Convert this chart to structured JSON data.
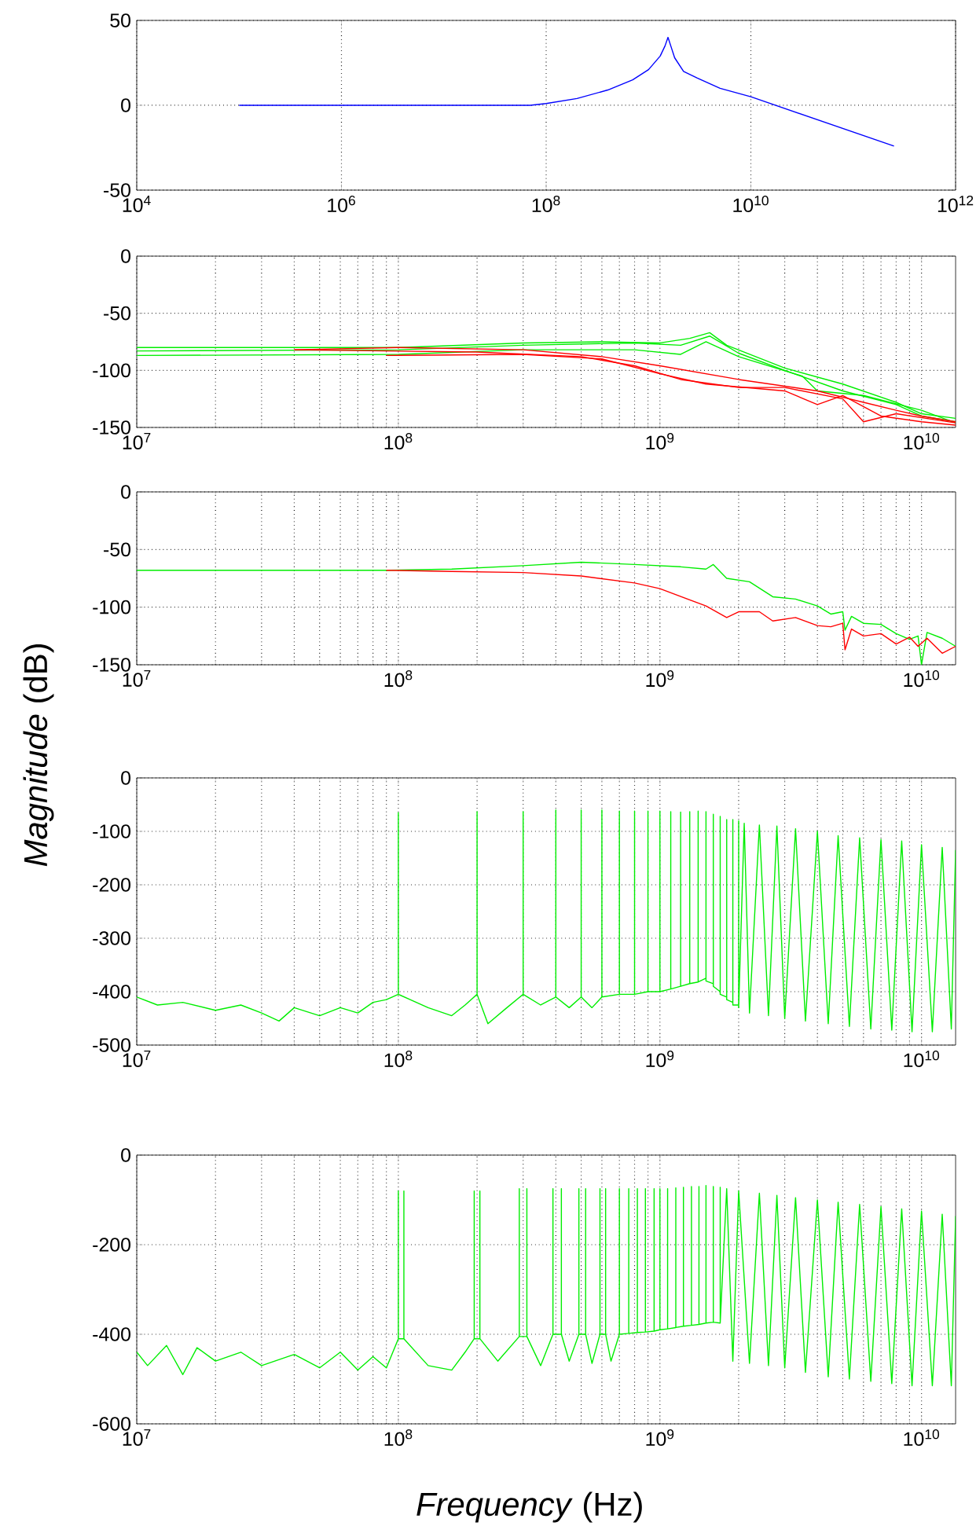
{
  "chart_data": [
    {
      "type": "line",
      "log": "x",
      "grid": true,
      "xlim": [
        10000,
        1000000000000
      ],
      "ylim": [
        -50,
        50
      ],
      "xticks": [
        {
          "value": 10000,
          "label": "10$^{4}$"
        },
        {
          "value": 1000000,
          "label": "10$^{6}$"
        },
        {
          "value": 100000000,
          "label": "10$^{8}$"
        },
        {
          "value": 10000000000,
          "label": "10$^{10}$"
        },
        {
          "value": 1000000000000,
          "label": "10$^{12}$"
        }
      ],
      "yticks": [
        -50,
        0,
        50
      ],
      "series": [
        {
          "color": "#0000ff",
          "x": [
            100000.0,
            70000000.0,
            100000000.0,
            200000000.0,
            400000000.0,
            700000000.0,
            1000000000.0,
            1300000000.0,
            1450000000.0,
            1550000000.0,
            1650000000.0,
            1800000000.0,
            2200000000.0,
            3000000000.0,
            5000000000.0,
            10000000000.0,
            250000000000.0
          ],
          "values": [
            0,
            0,
            1,
            4,
            9,
            15,
            21,
            29,
            35,
            40,
            35,
            28,
            20,
            16,
            10,
            5,
            -24
          ]
        }
      ]
    },
    {
      "type": "line",
      "log": "x",
      "grid": true,
      "xlim": [
        10000000,
        13500000000
      ],
      "ylim": [
        -150,
        0
      ],
      "xticks": [
        {
          "value": 10000000,
          "label": "10$^{7}$"
        },
        {
          "value": 100000000,
          "label": "10$^{8}$"
        },
        {
          "value": 1000000000,
          "label": "10$^{9}$"
        },
        {
          "value": 10000000000,
          "label": "10$^{10}$"
        }
      ],
      "yticks": [
        -150,
        -100,
        -50,
        0
      ],
      "series": [
        {
          "color": "#00ee00",
          "x": [
            10000000.0,
            100000000.0,
            300000000.0,
            600000000.0,
            1000000000.0,
            1300000000.0,
            1550000000.0,
            1800000000.0,
            3000000000.0,
            5000000000.0,
            8000000000.0,
            10000000000.0,
            13500000000.0
          ],
          "values": [
            -80,
            -80,
            -76,
            -75,
            -76,
            -72,
            -67,
            -78,
            -98,
            -112,
            -128,
            -138,
            -142
          ]
        },
        {
          "color": "#00ee00",
          "x": [
            10000000.0,
            100000000.0,
            300000000.0,
            800000000.0,
            1200000000.0,
            1550000000.0,
            2000000000.0,
            3000000000.0,
            5000000000.0,
            8000000000.0,
            10000000000.0,
            13500000000.0
          ],
          "values": [
            -83,
            -82,
            -78,
            -76,
            -78,
            -70,
            -85,
            -100,
            -118,
            -130,
            -140,
            -145
          ]
        },
        {
          "color": "#00ee00",
          "x": [
            10000000.0,
            100000000.0,
            300000000.0,
            800000000.0,
            1200000000.0,
            1500000000.0,
            2000000000.0,
            3500000000.0,
            4000000000.0,
            6000000000.0,
            10000000000.0,
            13500000000.0
          ],
          "values": [
            -87,
            -86,
            -82,
            -82,
            -86,
            -75,
            -88,
            -105,
            -118,
            -122,
            -135,
            -146
          ]
        },
        {
          "color": "#ff0000",
          "x": [
            40000000.0,
            100000000.0,
            300000000.0,
            600000000.0,
            1000000000.0,
            2000000000.0,
            4000000000.0,
            6000000000.0,
            8000000000.0,
            10000000000.0,
            13500000000.0
          ],
          "values": [
            -82,
            -80,
            -82,
            -88,
            -96,
            -108,
            -118,
            -128,
            -135,
            -140,
            -145
          ]
        },
        {
          "color": "#ff0000",
          "x": [
            90000000.0,
            300000000.0,
            600000000.0,
            1000000000.0,
            1500000000.0,
            3000000000.0,
            4000000000.0,
            5000000000.0,
            7000000000.0,
            10000000000.0,
            13500000000.0
          ],
          "values": [
            -87,
            -86,
            -90,
            -103,
            -112,
            -118,
            -130,
            -122,
            -140,
            -145,
            -148
          ]
        },
        {
          "color": "#ff0000",
          "x": [
            40000000.0,
            200000000.0,
            500000000.0,
            800000000.0,
            1200000000.0,
            2000000000.0,
            3000000000.0,
            5000000000.0,
            6000000000.0,
            8000000000.0,
            13500000000.0
          ],
          "values": [
            -82,
            -84,
            -88,
            -96,
            -108,
            -115,
            -115,
            -125,
            -145,
            -138,
            -146
          ]
        }
      ]
    },
    {
      "type": "line",
      "log": "x",
      "grid": true,
      "xlim": [
        10000000,
        13500000000
      ],
      "ylim": [
        -150,
        0
      ],
      "xticks": [
        {
          "value": 10000000,
          "label": "10$^{7}$"
        },
        {
          "value": 100000000,
          "label": "10$^{8}$"
        },
        {
          "value": 1000000000,
          "label": "10$^{9}$"
        },
        {
          "value": 10000000000,
          "label": "10$^{10}$"
        }
      ],
      "yticks": [
        -150,
        -100,
        -50,
        0
      ],
      "ylabel": "*Magnitude* (dB)",
      "series": [
        {
          "color": "#00ee00",
          "x": [
            10000000.0,
            90000000.0,
            160000000.0,
            300000000.0,
            500000000.0,
            800000000.0,
            1200000000.0,
            1500000000.0,
            1600000000.0,
            1800000000.0,
            2200000000.0,
            2700000000.0,
            3300000000.0,
            4000000000.0,
            4500000000.0,
            5000000000.0,
            5100000000.0,
            5400000000.0,
            6000000000.0,
            7000000000.0,
            8000000000.0,
            9000000000.0,
            9700000000.0,
            10000000000.0,
            10500000000.0,
            12000000000.0,
            13500000000.0
          ],
          "values": [
            -68,
            -68,
            -67,
            -64,
            -61,
            -63,
            -65,
            -67,
            -63,
            -75,
            -78,
            -91,
            -93,
            -99,
            -106,
            -104,
            -120,
            -108,
            -114,
            -115,
            -123,
            -128,
            -125,
            -150,
            -122,
            -127,
            -134
          ]
        },
        {
          "color": "#ff0000",
          "x": [
            90000000.0,
            160000000.0,
            300000000.0,
            500000000.0,
            800000000.0,
            1000000000.0,
            1500000000.0,
            1800000000.0,
            2000000000.0,
            2400000000.0,
            2700000000.0,
            3300000000.0,
            4000000000.0,
            4500000000.0,
            5000000000.0,
            5100000000.0,
            5400000000.0,
            6000000000.0,
            7000000000.0,
            8000000000.0,
            9000000000.0,
            9700000000.0,
            10500000000.0,
            12000000000.0,
            13500000000.0
          ],
          "values": [
            -68,
            -69,
            -70,
            -73,
            -79,
            -84,
            -99,
            -109,
            -104,
            -104,
            -112,
            -109,
            -116,
            -117,
            -114,
            -137,
            -119,
            -125,
            -123,
            -132,
            -126,
            -134,
            -127,
            -140,
            -134
          ]
        }
      ]
    },
    {
      "type": "line",
      "log": "x",
      "grid": true,
      "xlim": [
        10000000,
        13500000000
      ],
      "ylim": [
        -500,
        0
      ],
      "xticks": [
        {
          "value": 10000000,
          "label": "10$^{7}$"
        },
        {
          "value": 100000000,
          "label": "10$^{8}$"
        },
        {
          "value": 1000000000,
          "label": "10$^{9}$"
        },
        {
          "value": 10000000000,
          "label": "10$^{10}$"
        }
      ],
      "yticks": [
        -500,
        -400,
        -300,
        -200,
        -100,
        0
      ],
      "series": [
        {
          "color": "#00ee00",
          "x": [
            10000000.0,
            12000000.0,
            15000000.0,
            20000000.0,
            25000000.0,
            30000000.0,
            35000000.0,
            40000000.0,
            50000000.0,
            60000000.0,
            70000000.0,
            80000000.0,
            90000000.0,
            100000000.0,
            100000000.0,
            100000000.0,
            130000000.0,
            160000000.0,
            180000000.0,
            200000000.0,
            200000000.0,
            200000000.0,
            220000000.0,
            260000000.0,
            300000000.0,
            300000000.0,
            300000000.0,
            350000000.0,
            400000000.0,
            400000000.0,
            400000000.0,
            450000000.0,
            500000000.0,
            500000000.0,
            500000000.0,
            550000000.0,
            600000000.0,
            600000000.0,
            600000000.0,
            700000000.0,
            700000000.0,
            700000000.0,
            800000000.0,
            800000000.0,
            800000000.0,
            900000000.0,
            900000000.0,
            900000000.0,
            1000000000.0,
            1000000000.0,
            1000000000.0,
            1100000000.0,
            1100000000.0,
            1100000000.0,
            1200000000.0,
            1200000000.0,
            1200000000.0,
            1300000000.0,
            1300000000.0,
            1300000000.0,
            1400000000.0,
            1400000000.0,
            1400000000.0,
            1500000000.0,
            1500000000.0,
            1500000000.0,
            1600000000.0,
            1600000000.0,
            1600000000.0,
            1700000000.0,
            1700000000.0,
            1700000000.0,
            1800000000.0,
            1800000000.0,
            1800000000.0,
            1900000000.0,
            1900000000.0,
            1900000000.0,
            2000000000.0,
            2000000000.0,
            2000000000.0,
            2100000000.0,
            2200000000.0,
            2400000000.0,
            2600000000.0,
            2800000000.0,
            3000000000.0,
            3300000000.0,
            3600000000.0,
            4000000000.0,
            4400000000.0,
            4800000000.0,
            5300000000.0,
            5800000000.0,
            6400000000.0,
            7000000000.0,
            7700000000.0,
            8400000000.0,
            9200000000.0,
            10000000000.0,
            11000000000.0,
            12000000000.0,
            13000000000.0,
            13500000000.0
          ],
          "values": [
            -410,
            -425,
            -420,
            -435,
            -425,
            -440,
            -455,
            -430,
            -445,
            -430,
            -440,
            -420,
            -415,
            -405,
            -65,
            -405,
            -430,
            -445,
            -425,
            -405,
            -63,
            -405,
            -460,
            -430,
            -405,
            -63,
            -405,
            -425,
            -410,
            -60,
            -410,
            -430,
            -410,
            -60,
            -410,
            -430,
            -410,
            -60,
            -410,
            -405,
            -62,
            -405,
            -405,
            -62,
            -405,
            -400,
            -62,
            -400,
            -400,
            -62,
            -400,
            -395,
            -63,
            -395,
            -390,
            -64,
            -390,
            -385,
            -63,
            -385,
            -382,
            -62,
            -382,
            -375,
            -63,
            -380,
            -385,
            -68,
            -390,
            -400,
            -72,
            -405,
            -410,
            -78,
            -415,
            -420,
            -78,
            -425,
            -425,
            -80,
            -430,
            -85,
            -440,
            -88,
            -445,
            -90,
            -450,
            -95,
            -455,
            -100,
            -460,
            -108,
            -465,
            -112,
            -470,
            -115,
            -472,
            -118,
            -475,
            -125,
            -475,
            -130,
            -470,
            -135
          ]
        }
      ]
    },
    {
      "type": "line",
      "log": "x",
      "grid": true,
      "xlim": [
        10000000,
        13500000000
      ],
      "ylim": [
        -600,
        0
      ],
      "xticks": [
        {
          "value": 10000000,
          "label": "10$^{7}$"
        },
        {
          "value": 100000000,
          "label": "10$^{8}$"
        },
        {
          "value": 1000000000,
          "label": "10$^{9}$"
        },
        {
          "value": 10000000000,
          "label": "10$^{10}$"
        }
      ],
      "yticks": [
        -600,
        -400,
        -200,
        0
      ],
      "xlabel": "*Frequency* (Hz)",
      "series": [
        {
          "color": "#00ee00",
          "x": [
            10000000.0,
            11000000.0,
            13000000.0,
            15000000.0,
            17000000.0,
            20000000.0,
            25000000.0,
            30000000.0,
            40000000.0,
            50000000.0,
            60000000.0,
            70000000.0,
            80000000.0,
            90000000.0,
            100000000.0,
            100000000.0,
            100000000.0,
            105000000.0,
            105000000.0,
            105000000.0,
            130000000.0,
            160000000.0,
            180000000.0,
            195000000.0,
            195000000.0,
            195000000.0,
            205000000.0,
            205000000.0,
            205000000.0,
            240000000.0,
            290000000.0,
            290000000.0,
            290000000.0,
            310000000.0,
            310000000.0,
            310000000.0,
            350000000.0,
            390000000.0,
            390000000.0,
            390000000.0,
            420000000.0,
            420000000.0,
            420000000.0,
            450000000.0,
            490000000.0,
            490000000.0,
            490000000.0,
            520000000.0,
            520000000.0,
            520000000.0,
            550000000.0,
            590000000.0,
            590000000.0,
            590000000.0,
            620000000.0,
            620000000.0,
            620000000.0,
            650000000.0,
            700000000.0,
            700000000.0,
            700000000.0,
            760000000.0,
            760000000.0,
            760000000.0,
            820000000.0,
            820000000.0,
            820000000.0,
            880000000.0,
            880000000.0,
            880000000.0,
            950000000.0,
            950000000.0,
            950000000.0,
            1000000000.0,
            1000000000.0,
            1000000000.0,
            1070000000.0,
            1070000000.0,
            1070000000.0,
            1150000000.0,
            1150000000.0,
            1150000000.0,
            1230000000.0,
            1230000000.0,
            1230000000.0,
            1320000000.0,
            1320000000.0,
            1320000000.0,
            1410000000.0,
            1410000000.0,
            1410000000.0,
            1500000000.0,
            1500000000.0,
            1500000000.0,
            1600000000.0,
            1600000000.0,
            1600000000.0,
            1700000000.0,
            1700000000.0,
            1700000000.0,
            1800000000.0,
            1900000000.0,
            2000000000.0,
            2200000000.0,
            2400000000.0,
            2600000000.0,
            2800000000.0,
            3000000000.0,
            3300000000.0,
            3600000000.0,
            4000000000.0,
            4400000000.0,
            4800000000.0,
            5300000000.0,
            5800000000.0,
            6400000000.0,
            7000000000.0,
            7700000000.0,
            8400000000.0,
            9200000000.0,
            10000000000.0,
            11000000000.0,
            12000000000.0,
            13000000000.0,
            13500000000.0
          ],
          "values": [
            -440,
            -470,
            -425,
            -490,
            -430,
            -460,
            -440,
            -470,
            -445,
            -475,
            -440,
            -480,
            -450,
            -475,
            -410,
            -80,
            -410,
            -410,
            -80,
            -410,
            -470,
            -480,
            -440,
            -410,
            -80,
            -410,
            -410,
            -80,
            -410,
            -460,
            -405,
            -75,
            -405,
            -405,
            -75,
            -405,
            -470,
            -400,
            -75,
            -400,
            -400,
            -75,
            -400,
            -460,
            -400,
            -75,
            -400,
            -400,
            -75,
            -400,
            -465,
            -400,
            -75,
            -400,
            -400,
            -75,
            -400,
            -460,
            -400,
            -75,
            -400,
            -398,
            -75,
            -398,
            -396,
            -75,
            -396,
            -395,
            -75,
            -395,
            -393,
            -75,
            -393,
            -390,
            -75,
            -390,
            -388,
            -75,
            -388,
            -385,
            -73,
            -385,
            -382,
            -72,
            -382,
            -380,
            -70,
            -380,
            -378,
            -70,
            -378,
            -375,
            -68,
            -375,
            -373,
            -70,
            -373,
            -375,
            -72,
            -375,
            -75,
            -460,
            -80,
            -465,
            -85,
            -470,
            -90,
            -475,
            -95,
            -485,
            -100,
            -495,
            -105,
            -500,
            -110,
            -505,
            -115,
            -510,
            -120,
            -515,
            -125,
            -515,
            -132,
            -515,
            -136
          ]
        }
      ]
    }
  ]
}
